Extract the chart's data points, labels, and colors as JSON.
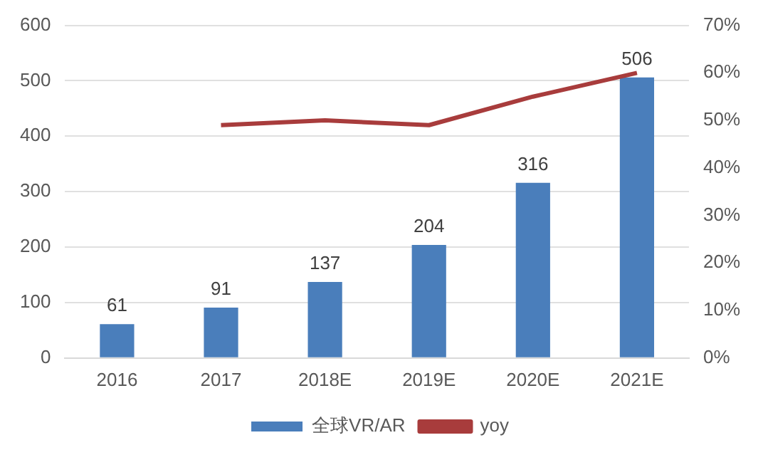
{
  "chart_data": {
    "type": "bar",
    "categories": [
      "2016",
      "2017",
      "2018E",
      "2019E",
      "2020E",
      "2021E"
    ],
    "series": [
      {
        "name": "全球VR/AR",
        "color": "#4a7ebb",
        "values": [
          61,
          91,
          137,
          204,
          316,
          506
        ],
        "value_labels": [
          "61",
          "91",
          "137",
          "204",
          "316",
          "506"
        ]
      },
      {
        "name": "yoy",
        "type": "line",
        "axis": "y2",
        "color": "#a83c3c",
        "values": [
          null,
          49,
          50,
          49,
          55,
          60
        ]
      }
    ],
    "ylim": [
      0,
      600
    ],
    "yticks": [
      0,
      100,
      200,
      300,
      400,
      500,
      600
    ],
    "y2lim": [
      0,
      70
    ],
    "y2ticks": [
      {
        "value": 0,
        "label": "0%"
      },
      {
        "value": 10,
        "label": "10%"
      },
      {
        "value": 20,
        "label": "20%"
      },
      {
        "value": 30,
        "label": "30%"
      },
      {
        "value": 40,
        "label": "40%"
      },
      {
        "value": 50,
        "label": "50%"
      },
      {
        "value": 60,
        "label": "60%"
      },
      {
        "value": 70,
        "label": "70%"
      }
    ],
    "grid": "y",
    "legend": "bottom",
    "marker": "none"
  }
}
